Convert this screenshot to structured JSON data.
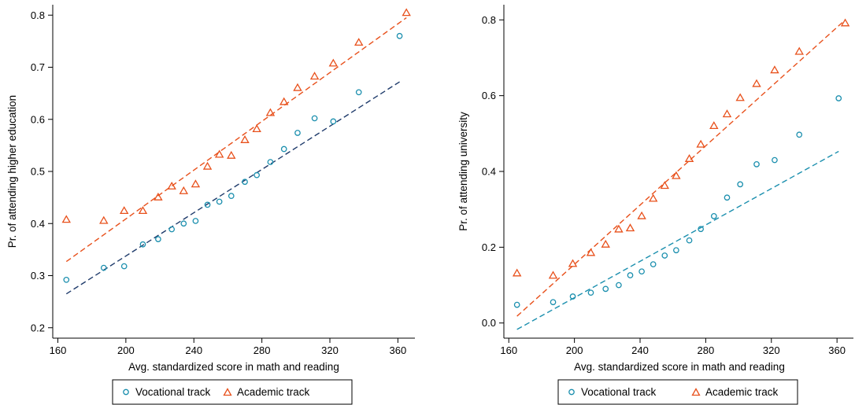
{
  "colors": {
    "vocational": "#1b8fae",
    "vocational_fit_left": "#1f3b6b",
    "vocational_fit_right": "#1b8fae",
    "academic": "#e8501b"
  },
  "chart_data": [
    {
      "type": "scatter",
      "title": "",
      "xlabel": "Avg. standardized score in math and reading",
      "ylabel": "Pr. of attending higher education",
      "xlim": [
        157,
        370
      ],
      "ylim": [
        0.18,
        0.82
      ],
      "xticks": [
        160,
        200,
        240,
        280,
        320,
        360
      ],
      "yticks": [
        0.2,
        0.3,
        0.4,
        0.5,
        0.6,
        0.7,
        0.8
      ],
      "ytick_labels": [
        "0.2",
        "0.3",
        "0.4",
        "0.5",
        "0.6",
        "0.7",
        "0.8"
      ],
      "grid": false,
      "legend_position": "bottom",
      "series": [
        {
          "name": "Vocational track",
          "marker": "circle",
          "x": [
            165,
            187,
            199,
            210,
            219,
            227,
            234,
            241,
            248,
            255,
            262,
            270,
            277,
            285,
            293,
            301,
            311,
            322,
            337,
            361
          ],
          "y": [
            0.292,
            0.315,
            0.318,
            0.36,
            0.37,
            0.389,
            0.4,
            0.405,
            0.436,
            0.442,
            0.453,
            0.48,
            0.493,
            0.518,
            0.543,
            0.574,
            0.602,
            0.596,
            0.652,
            0.76
          ],
          "fit": [
            [
              165,
              0.265
            ],
            [
              361,
              0.672
            ]
          ]
        },
        {
          "name": "Academic track",
          "marker": "triangle",
          "x": [
            165,
            187,
            199,
            210,
            219,
            227,
            234,
            241,
            248,
            255,
            262,
            270,
            277,
            285,
            293,
            301,
            311,
            322,
            337,
            365
          ],
          "y": [
            0.408,
            0.406,
            0.425,
            0.425,
            0.451,
            0.472,
            0.463,
            0.476,
            0.51,
            0.533,
            0.531,
            0.561,
            0.582,
            0.613,
            0.634,
            0.661,
            0.683,
            0.708,
            0.748,
            0.805
          ],
          "fit": [
            [
              165,
              0.327
            ],
            [
              365,
              0.795
            ]
          ]
        }
      ]
    },
    {
      "type": "scatter",
      "title": "",
      "xlabel": "Avg. standardized score in math and reading",
      "ylabel": "Pr. of attending university",
      "xlim": [
        157,
        370
      ],
      "ylim": [
        -0.04,
        0.84
      ],
      "xticks": [
        160,
        200,
        240,
        280,
        320,
        360
      ],
      "yticks": [
        0.0,
        0.2,
        0.4,
        0.6,
        0.8
      ],
      "ytick_labels": [
        "0.0",
        "0.2",
        "0.4",
        "0.6",
        "0.8"
      ],
      "grid": false,
      "legend_position": "bottom",
      "series": [
        {
          "name": "Vocational track",
          "marker": "circle",
          "x": [
            165,
            187,
            199,
            210,
            219,
            227,
            234,
            241,
            248,
            255,
            262,
            270,
            277,
            285,
            293,
            301,
            311,
            322,
            337,
            361
          ],
          "y": [
            0.048,
            0.055,
            0.07,
            0.08,
            0.09,
            0.1,
            0.126,
            0.136,
            0.155,
            0.178,
            0.192,
            0.218,
            0.248,
            0.282,
            0.331,
            0.366,
            0.419,
            0.43,
            0.497,
            0.593
          ],
          "fit": [
            [
              165,
              -0.017
            ],
            [
              361,
              0.453
            ]
          ]
        },
        {
          "name": "Academic track",
          "marker": "triangle",
          "x": [
            165,
            187,
            199,
            210,
            219,
            227,
            234,
            241,
            248,
            255,
            262,
            270,
            277,
            285,
            293,
            301,
            311,
            322,
            337,
            365
          ],
          "y": [
            0.132,
            0.126,
            0.157,
            0.186,
            0.208,
            0.248,
            0.251,
            0.283,
            0.329,
            0.363,
            0.389,
            0.434,
            0.472,
            0.521,
            0.552,
            0.595,
            0.632,
            0.668,
            0.717,
            0.792
          ],
          "fit": [
            [
              165,
              0.018
            ],
            [
              365,
              0.8
            ]
          ]
        }
      ]
    }
  ]
}
